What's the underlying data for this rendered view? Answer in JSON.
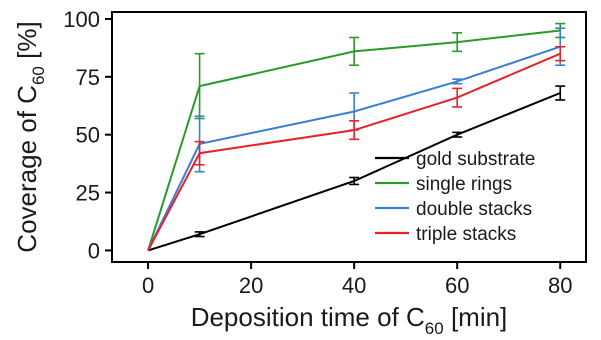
{
  "chart_data": {
    "type": "line",
    "xlabel": {
      "main": "Deposition time of C",
      "sub": "60",
      "suffix": " [min]"
    },
    "ylabel": {
      "main": "Coverage of C",
      "sub": "60",
      "suffix": " [%]"
    },
    "xlim": [
      -7,
      85
    ],
    "ylim": [
      -5,
      103
    ],
    "xticks": [
      0,
      20,
      40,
      60,
      80
    ],
    "yticks": [
      0,
      25,
      50,
      75,
      100
    ],
    "grid": false,
    "legend_position": "bottom-right",
    "x": [
      0,
      10,
      40,
      60,
      80
    ],
    "series": [
      {
        "name": "gold substrate",
        "color": "#000000",
        "values": [
          0,
          7,
          30,
          50,
          68
        ],
        "errors": [
          0,
          1,
          1.5,
          1,
          3
        ]
      },
      {
        "name": "single rings",
        "color": "#2a9a2a",
        "values": [
          0,
          71,
          86,
          90,
          95
        ],
        "errors": [
          0,
          14,
          6,
          4,
          3
        ]
      },
      {
        "name": "double stacks",
        "color": "#3a7fd5",
        "values": [
          0,
          46,
          60,
          73,
          88
        ],
        "errors": [
          0,
          12,
          8,
          1,
          8
        ]
      },
      {
        "name": "triple stacks",
        "color": "#e8222b",
        "values": [
          0,
          42,
          52,
          66,
          85
        ],
        "errors": [
          0,
          5,
          4,
          4,
          3
        ]
      }
    ]
  }
}
